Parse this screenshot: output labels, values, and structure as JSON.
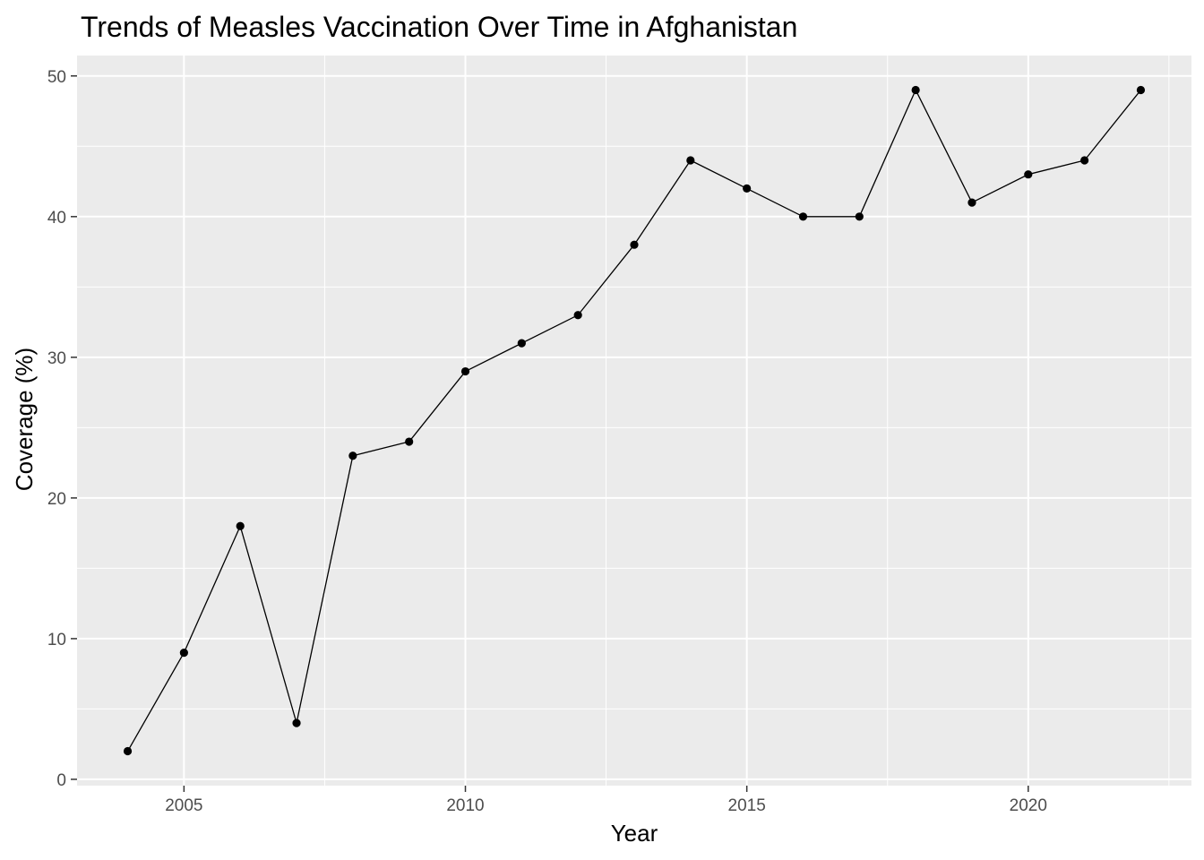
{
  "chart_data": {
    "type": "line",
    "title": "Trends of Measles Vaccination Over Time in Afghanistan",
    "xlabel": "Year",
    "ylabel": "Coverage (%)",
    "x": [
      2004,
      2005,
      2006,
      2007,
      2008,
      2009,
      2010,
      2011,
      2012,
      2013,
      2014,
      2015,
      2016,
      2017,
      2018,
      2019,
      2020,
      2021,
      2022
    ],
    "series": [
      {
        "values": [
          2,
          9,
          18,
          4,
          23,
          24,
          29,
          31,
          33,
          38,
          44,
          42,
          40,
          40,
          49,
          41,
          43,
          44,
          49
        ]
      }
    ],
    "xlim": [
      2003.1,
      2022.9
    ],
    "ylim": [
      -0.45,
      51.45
    ],
    "x_ticks": [
      "2005",
      "2010",
      "2015",
      "2020"
    ],
    "y_ticks": [
      "0",
      "10",
      "20",
      "30",
      "40",
      "50"
    ],
    "grid": true,
    "panel_background": "#ebebeb",
    "grid_color": "#ffffff",
    "line_color": "#000000",
    "point_color": "#000000",
    "legend": "none"
  }
}
